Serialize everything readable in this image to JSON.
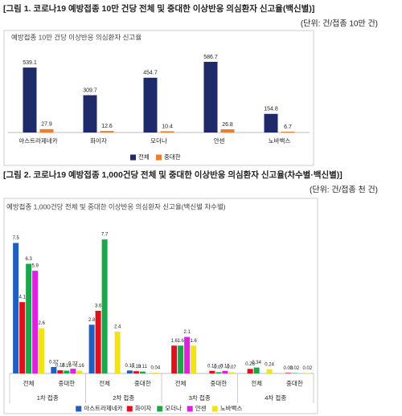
{
  "captions": [
    "[그림 1. 코로나19 예방접종 10만 건당 전체 및 중대한 이상반응 의심환자 신고율(백신별)]",
    "[그림 2. 코로나19 예방접종 1,000건당 전체 및 중대한 이상반응 의심환자 신고율(차수별·백신별)]"
  ],
  "units": [
    "(단위: 건/접종 10만 건)",
    "(단위: 건/접종 천 건)"
  ],
  "chart_data": [
    {
      "type": "bar",
      "title": "예방접종 10만 건당 이상반응 의심환자 신고율",
      "categories": [
        "아스트라제네카",
        "화이자",
        "모더나",
        "얀센",
        "노바백스"
      ],
      "series": [
        {
          "name": "전체",
          "color": "#1f2a6b",
          "values": [
            539.1,
            309.7,
            454.7,
            586.7,
            154.8
          ]
        },
        {
          "name": "중대한",
          "color": "#ed7d31",
          "values": [
            27.9,
            12.6,
            10.4,
            26.8,
            6.7
          ]
        }
      ],
      "ylim": [
        0,
        700
      ]
    },
    {
      "type": "bar",
      "title": "예방접종 1,000건당 전체 및 중대한 이상반응 의심환자 신고율(백신별 차수별)",
      "groups": [
        "1차 접종",
        "2차 접종",
        "3차 접종",
        "4차 접종"
      ],
      "categories": [
        "전체",
        "중대한",
        "전체",
        "중대한",
        "전체",
        "중대한",
        "전체",
        "중대한"
      ],
      "series": [
        {
          "name": "아스트라제네카",
          "color": "#1f5fc4",
          "values": [
            7.5,
            0.37,
            2.8,
            0.17,
            null,
            null,
            null,
            null
          ]
        },
        {
          "name": "화이자",
          "color": "#e0101a",
          "values": [
            4.1,
            0.18,
            3.6,
            0.13,
            1.6,
            0.15,
            0.26,
            0.03
          ]
        },
        {
          "name": "모더나",
          "color": "#18a84a",
          "values": [
            6.3,
            0.16,
            7.7,
            0.11,
            1.6,
            0.07,
            0.34,
            0.02
          ]
        },
        {
          "name": "얀센",
          "color": "#e020e0",
          "values": [
            5.9,
            0.27,
            null,
            null,
            2.1,
            0.15,
            null,
            null
          ]
        },
        {
          "name": "노바백스",
          "color": "#f2e21a",
          "values": [
            2.6,
            0.16,
            2.4,
            0.04,
            1.6,
            0.07,
            0.24,
            0.02
          ]
        }
      ],
      "ylim": [
        0,
        9
      ]
    }
  ]
}
